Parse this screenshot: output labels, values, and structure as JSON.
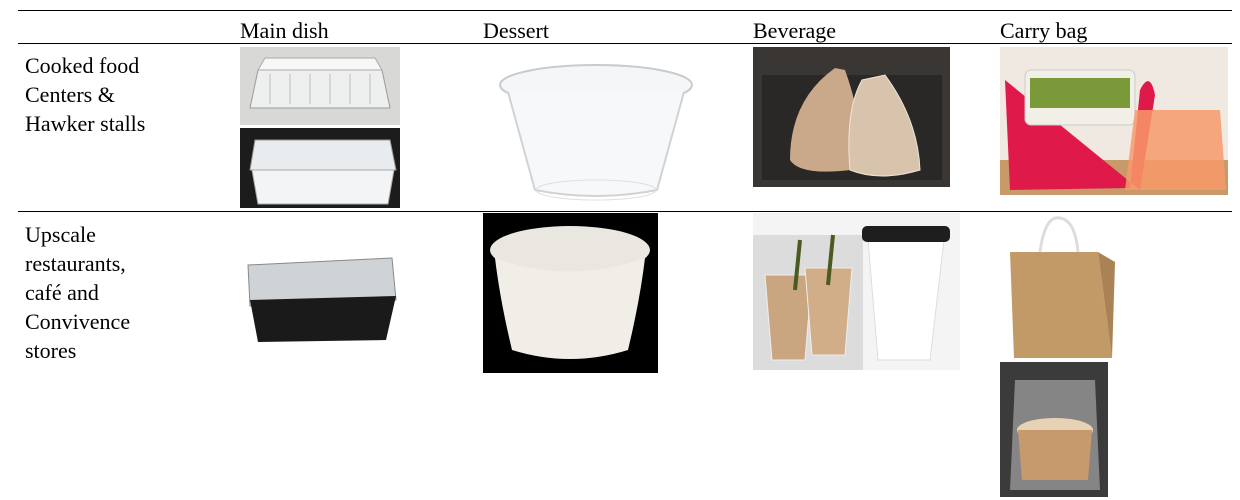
{
  "table": {
    "columns": [
      "Main dish",
      "Dessert",
      "Beverage",
      "Carry bag"
    ],
    "rows": [
      {
        "label_lines": [
          "Cooked food",
          "Centers &",
          "Hawker stalls"
        ]
      },
      {
        "label_lines": [
          "Upscale",
          "restaurants,",
          "café and",
          "Convivence",
          "stores"
        ]
      }
    ]
  }
}
